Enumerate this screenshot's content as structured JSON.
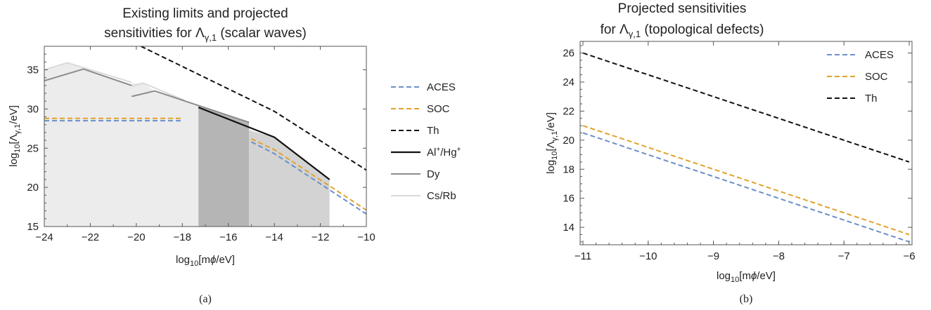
{
  "chart_data": [
    {
      "type": "line",
      "title_lines": [
        "Existing limits and projected",
        "sensitivities for Λ",
        "γ,1",
        " (scalar waves)"
      ],
      "xlabel": "log",
      "xlabel_sub": "10",
      "xlabel_rest": "[m",
      "xlabel_sym": "ϕ",
      "xlabel_end": "/eV]",
      "ylabel": "log",
      "ylabel_sub": "10",
      "ylabel_rest": "[Λ",
      "ylabel_sym": "γ,1",
      "ylabel_end": "/eV]",
      "xlim": [
        -24,
        -10
      ],
      "ylim": [
        15,
        38
      ],
      "xticks": [
        "-24",
        "-22",
        "-20",
        "-18",
        "-16",
        "-14",
        "-12",
        "-10"
      ],
      "xtick_values": [
        -24,
        -22,
        -20,
        -18,
        -16,
        -14,
        -12,
        -10
      ],
      "yticks": [
        "15",
        "20",
        "25",
        "30",
        "35"
      ],
      "ytick_values": [
        15,
        20,
        25,
        30,
        35
      ],
      "caption": "(a)",
      "legend": [
        "ACES",
        "SOC",
        "Th",
        "Al+/Hg+",
        "Dy",
        "Cs/Rb"
      ],
      "colors": {
        "ACES": "#6a8fc9",
        "SOC": "#e2a22b",
        "Th": "#111111",
        "AlHg": "#111111",
        "Dy": "#8c8c8c",
        "CsRb": "#d9d9d9"
      },
      "series": [
        {
          "name": "ACES",
          "segments": [
            {
              "x": [
                -24,
                -18
              ],
              "y": [
                28.5,
                28.5
              ]
            },
            {
              "x": [
                -15,
                -14,
                -10
              ],
              "y": [
                25.8,
                24.3,
                16.6
              ]
            }
          ]
        },
        {
          "name": "SOC",
          "segments": [
            {
              "x": [
                -24,
                -18
              ],
              "y": [
                28.8,
                28.8
              ]
            },
            {
              "x": [
                -15,
                -14,
                -10
              ],
              "y": [
                26.2,
                24.8,
                17.1
              ]
            }
          ]
        },
        {
          "name": "Th",
          "segments": [
            {
              "x": [
                -19.8,
                -14,
                -10
              ],
              "y": [
                38.0,
                29.7,
                22.2
              ]
            }
          ]
        },
        {
          "name": "Al+/Hg+",
          "segments": [
            {
              "x": [
                -17.3,
                -14,
                -11.6
              ],
              "y": [
                30.2,
                26.4,
                21.0
              ]
            }
          ]
        },
        {
          "name": "Dy",
          "segments": [
            {
              "x": [
                -24,
                -22.3,
                -20.2
              ],
              "y": [
                33.6,
                35.1,
                33.0
              ]
            },
            {
              "x": [
                -20.2,
                -19.2,
                -15.1
              ],
              "y": [
                31.6,
                32.3,
                28.3
              ]
            }
          ]
        },
        {
          "name": "Cs/Rb",
          "segments": [
            {
              "x": [
                -24,
                -23,
                -20.2
              ],
              "y": [
                35.0,
                35.9,
                33.4
              ]
            },
            {
              "x": [
                -20.2,
                -19.7,
                -17.9
              ],
              "y": [
                32.9,
                33.3,
                31.1
              ]
            }
          ]
        }
      ],
      "regions": [
        {
          "x": [
            -24,
            -23,
            -22.3,
            -20.2,
            -20.2
          ],
          "y_top": [
            35.0,
            35.9,
            35.1,
            33.0,
            33.0
          ],
          "fill": "#ececec"
        },
        {
          "x": [
            -20.2,
            -19.7,
            -19.2,
            -17.9,
            -17.3
          ],
          "y_top": [
            33.3,
            33.3,
            32.3,
            31.1,
            30.5
          ],
          "fill": "#ececec"
        },
        {
          "x": [
            -17.3,
            -15.1
          ],
          "y_top": [
            30.5,
            28.3
          ],
          "fill": "#b5b5b5"
        },
        {
          "x": [
            -15.1,
            -14,
            -11.6
          ],
          "y_top": [
            27.3,
            26.4,
            21.0
          ],
          "fill": "#d3d3d3"
        }
      ]
    },
    {
      "type": "line",
      "title_lines": [
        "Projected sensitivities",
        "for Λ",
        "γ,1",
        " (topological defects)"
      ],
      "xlabel": "log",
      "xlabel_sub": "10",
      "xlabel_rest": "[m",
      "xlabel_sym": "ϕ",
      "xlabel_end": "/eV]",
      "ylabel": "log",
      "ylabel_sub": "10",
      "ylabel_rest": "[Λ",
      "ylabel_sym": "γ,1",
      "ylabel_end": "/eV]",
      "xlim": [
        -11,
        -6
      ],
      "ylim": [
        12.8,
        26.8
      ],
      "xticks": [
        "-11",
        "-10",
        "-9",
        "-8",
        "-7",
        "-6"
      ],
      "xtick_values": [
        -11,
        -10,
        -9,
        -8,
        -7,
        -6
      ],
      "yticks": [
        "14",
        "16",
        "18",
        "20",
        "22",
        "24",
        "26"
      ],
      "ytick_values": [
        14,
        16,
        18,
        20,
        22,
        24,
        26
      ],
      "caption": "(b)",
      "legend": [
        "ACES",
        "SOC",
        "Th"
      ],
      "series": [
        {
          "name": "ACES",
          "x": [
            -11,
            -6
          ],
          "y": [
            20.5,
            13.0
          ]
        },
        {
          "name": "SOC",
          "x": [
            -11,
            -6
          ],
          "y": [
            21.0,
            13.5
          ]
        },
        {
          "name": "Th",
          "x": [
            -11,
            -6
          ],
          "y": [
            26.0,
            18.5
          ]
        }
      ]
    }
  ],
  "legend_sup": "+"
}
